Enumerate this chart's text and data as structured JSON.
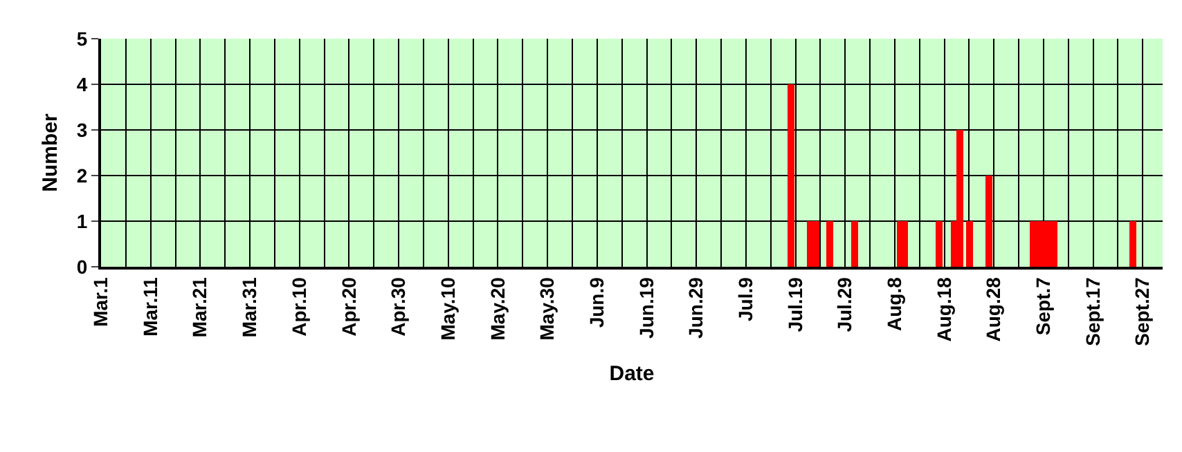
{
  "chart_data": {
    "type": "bar",
    "xlabel": "Date",
    "ylabel": "Number",
    "x": [
      "--07-18",
      "--07-22",
      "--07-23",
      "--07-26",
      "--07-31",
      "--08-09",
      "--08-10",
      "--08-17",
      "--08-20",
      "--08-21",
      "--08-23",
      "--08-27",
      "--09-05",
      "--09-06",
      "--09-07",
      "--09-08",
      "--09-09",
      "--09-25"
    ],
    "values": [
      4,
      1,
      1,
      1,
      1,
      1,
      1,
      1,
      1,
      3,
      1,
      2,
      1,
      1,
      1,
      1,
      1,
      1
    ],
    "color": "#ff0000",
    "xlim": [
      "--03-01",
      "--10-01"
    ],
    "xticks": [
      {
        "value": "--03-01",
        "label": "Mar.1"
      },
      {
        "value": "--03-06",
        "label": null
      },
      {
        "value": "--03-11",
        "label": "Mar.11"
      },
      {
        "value": "--03-16",
        "label": null
      },
      {
        "value": "--03-21",
        "label": "Mar.21"
      },
      {
        "value": "--03-26",
        "label": null
      },
      {
        "value": "--03-31",
        "label": "Mar.31"
      },
      {
        "value": "--04-05",
        "label": null
      },
      {
        "value": "--04-10",
        "label": "Apr.10"
      },
      {
        "value": "--04-15",
        "label": null
      },
      {
        "value": "--04-20",
        "label": "Apr.20"
      },
      {
        "value": "--04-25",
        "label": null
      },
      {
        "value": "--04-30",
        "label": "Apr.30"
      },
      {
        "value": "--05-05",
        "label": null
      },
      {
        "value": "--05-10",
        "label": "May.10"
      },
      {
        "value": "--05-15",
        "label": null
      },
      {
        "value": "--05-20",
        "label": "May.20"
      },
      {
        "value": "--05-25",
        "label": null
      },
      {
        "value": "--05-30",
        "label": "May.30"
      },
      {
        "value": "--06-04",
        "label": null
      },
      {
        "value": "--06-09",
        "label": "Jun.9"
      },
      {
        "value": "--06-14",
        "label": null
      },
      {
        "value": "--06-19",
        "label": "Jun.19"
      },
      {
        "value": "--06-24",
        "label": null
      },
      {
        "value": "--06-29",
        "label": "Jun.29"
      },
      {
        "value": "--07-04",
        "label": null
      },
      {
        "value": "--07-09",
        "label": "Jul.9"
      },
      {
        "value": "--07-14",
        "label": null
      },
      {
        "value": "--07-19",
        "label": "Jul.19"
      },
      {
        "value": "--07-24",
        "label": null
      },
      {
        "value": "--07-29",
        "label": "Jul.29"
      },
      {
        "value": "--08-03",
        "label": null
      },
      {
        "value": "--08-08",
        "label": "Aug.8"
      },
      {
        "value": "--08-13",
        "label": null
      },
      {
        "value": "--08-18",
        "label": "Aug.18"
      },
      {
        "value": "--08-23",
        "label": null
      },
      {
        "value": "--08-28",
        "label": "Aug.28"
      },
      {
        "value": "--09-02",
        "label": null
      },
      {
        "value": "--09-07",
        "label": "Sept.7"
      },
      {
        "value": "--09-12",
        "label": null
      },
      {
        "value": "--09-17",
        "label": "Sept.17"
      },
      {
        "value": "--09-22",
        "label": null
      },
      {
        "value": "--09-27",
        "label": "Sept.27"
      }
    ],
    "ylim": [
      0,
      5
    ],
    "yticks": [
      0,
      1,
      2,
      3,
      4,
      5
    ],
    "grid": true
  }
}
